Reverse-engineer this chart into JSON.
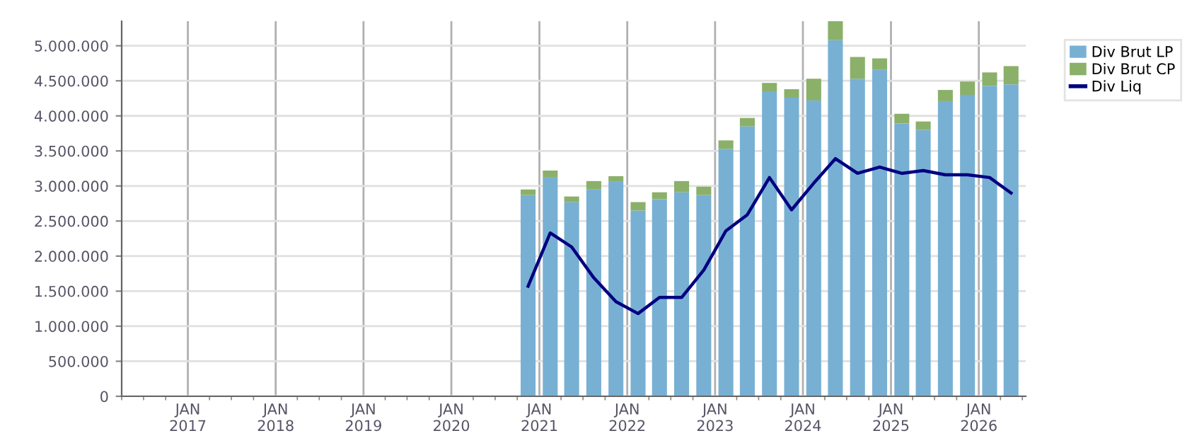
{
  "chart_data": {
    "type": "bar",
    "stacked": true,
    "x": [
      "2020-11-15",
      "2021-02-15",
      "2021-05-15",
      "2021-08-15",
      "2021-11-15",
      "2022-02-15",
      "2022-05-15",
      "2022-08-15",
      "2022-11-15",
      "2023-02-15",
      "2023-05-15",
      "2023-08-15",
      "2023-11-15",
      "2024-02-15",
      "2024-05-15",
      "2024-08-15",
      "2024-11-15",
      "2025-02-15",
      "2025-05-15",
      "2025-08-15",
      "2025-11-15",
      "2026-02-15",
      "2026-05-15"
    ],
    "series": [
      {
        "name": "Div Brut LP",
        "color": "#78b0d3",
        "values": [
          2870000,
          3120000,
          2770000,
          2950000,
          3060000,
          2650000,
          2810000,
          2910000,
          2870000,
          3530000,
          3850000,
          4350000,
          4260000,
          4220000,
          5080000,
          4530000,
          4660000,
          3890000,
          3800000,
          4210000,
          4300000,
          4430000,
          4450000
        ]
      },
      {
        "name": "Div Brut CP",
        "color": "#8bb06a",
        "values": [
          80000,
          100000,
          80000,
          120000,
          80000,
          120000,
          100000,
          160000,
          120000,
          120000,
          120000,
          120000,
          120000,
          310000,
          270000,
          310000,
          160000,
          140000,
          120000,
          160000,
          190000,
          190000,
          260000
        ]
      },
      {
        "name": "Div Liq",
        "type": "line",
        "color": "#000080",
        "values": [
          1570000,
          2330000,
          2130000,
          1690000,
          1350000,
          1180000,
          1410000,
          1410000,
          1800000,
          2360000,
          2590000,
          3120000,
          2660000,
          3040000,
          3390000,
          3180000,
          3270000,
          3180000,
          3220000,
          3160000,
          3160000,
          3120000,
          2900000
        ]
      }
    ],
    "xlim": [
      "2016-04-01",
      "2026-07-15"
    ],
    "xticks": [
      {
        "value": "2017-01-01",
        "label": "JAN\n2017"
      },
      {
        "value": "2018-01-01",
        "label": "JAN\n2018"
      },
      {
        "value": "2019-01-01",
        "label": "JAN\n2019"
      },
      {
        "value": "2020-01-01",
        "label": "JAN\n2020"
      },
      {
        "value": "2021-01-01",
        "label": "JAN\n2021"
      },
      {
        "value": "2022-01-01",
        "label": "JAN\n2022"
      },
      {
        "value": "2023-01-01",
        "label": "JAN\n2023"
      },
      {
        "value": "2024-01-01",
        "label": "JAN\n2024"
      },
      {
        "value": "2025-01-01",
        "label": "JAN\n2025"
      },
      {
        "value": "2026-01-01",
        "label": "JAN\n2026"
      }
    ],
    "ylim": [
      0,
      5350000
    ],
    "yticks": [
      0,
      {
        "value": 500000,
        "label": "500.000"
      },
      {
        "value": 1000000,
        "label": "1.000.000"
      },
      {
        "value": 1500000,
        "label": "1.500.000"
      },
      {
        "value": 2000000,
        "label": "2.000.000"
      },
      {
        "value": 2500000,
        "label": "2.500.000"
      },
      {
        "value": 3000000,
        "label": "3.000.000"
      },
      {
        "value": 3500000,
        "label": "3.500.000"
      },
      {
        "value": 4000000,
        "label": "4.000.000"
      },
      {
        "value": 4500000,
        "label": "4.500.000"
      },
      {
        "value": 5000000,
        "label": "5.000.000"
      }
    ],
    "grid": true,
    "legend": "top right",
    "line_style": "solid",
    "marker": "none"
  }
}
